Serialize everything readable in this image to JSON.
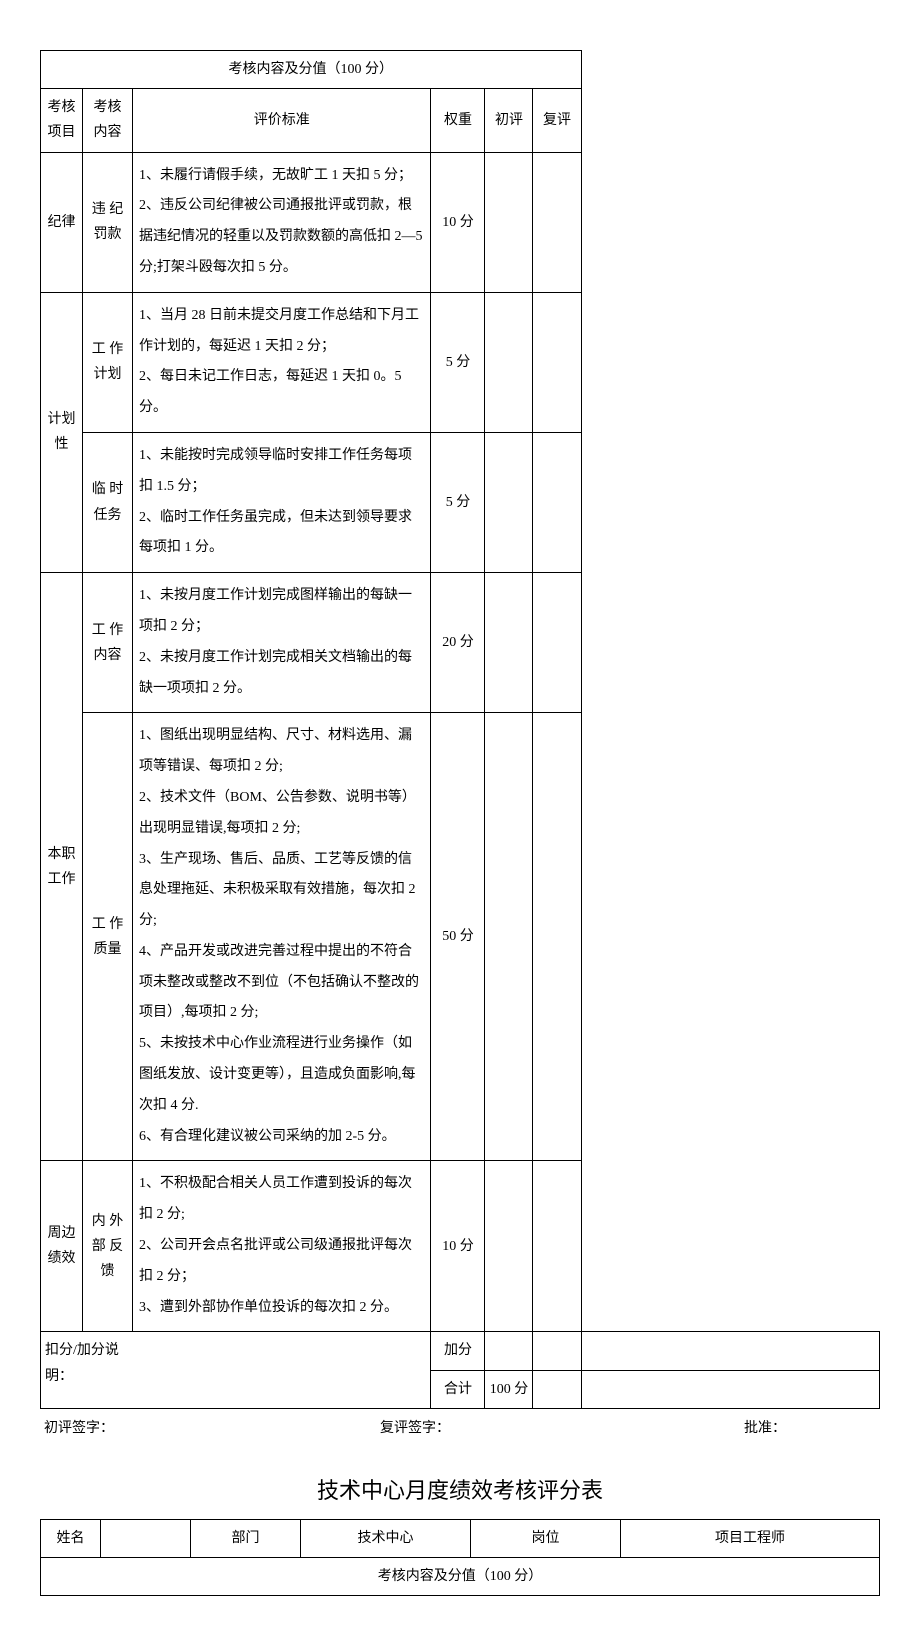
{
  "table1": {
    "header_full": "考核内容及分值（100 分）",
    "cols": {
      "item": "考核项目",
      "sub": "考核内容",
      "criteria": "评价标准",
      "weight": "权重",
      "score1": "初评",
      "score2": "复评"
    },
    "rows": [
      {
        "item": "纪律",
        "sub": "违 纪罚款",
        "criteria": "1、未履行请假手续，无故旷工 1 天扣 5 分；\n2、违反公司纪律被公司通报批评或罚款，根据违纪情况的轻重以及罚款数额的高低扣 2—5 分;打架斗殴每次扣 5 分。",
        "weight": "10 分"
      },
      {
        "item": "计划性",
        "subs": [
          {
            "sub": "工 作计划",
            "criteria": "1、当月 28 日前未提交月度工作总结和下月工作计划的，每延迟 1 天扣 2 分；\n2、每日未记工作日志，每延迟 1 天扣 0。5 分。",
            "weight": "5 分"
          },
          {
            "sub": "临 时任务",
            "criteria": "1、未能按时完成领导临时安排工作任务每项扣 1.5 分；\n2、临时工作任务虽完成，但未达到领导要求每项扣 1 分。",
            "weight": "5 分"
          }
        ]
      },
      {
        "item": "本职工作",
        "subs": [
          {
            "sub": "工 作内容",
            "criteria": "1、未按月度工作计划完成图样输出的每缺一项扣 2 分；\n2、未按月度工作计划完成相关文档输出的每缺一项项扣 2 分。",
            "weight": "20 分"
          },
          {
            "sub": "工 作质量",
            "criteria": "1、图纸出现明显结构、尺寸、材料选用、漏项等错误、每项扣 2 分;\n2、技术文件（BOM、公告参数、说明书等）出现明显错误,每项扣 2 分;\n3、生产现场、售后、品质、工艺等反馈的信息处理拖延、未积极采取有效措施，每次扣 2 分;\n4、产品开发或改进完善过程中提出的不符合项未整改或整改不到位（不包括确认不整改的项目）,每项扣 2 分;\n5、未按技术中心作业流程进行业务操作（如图纸发放、设计变更等），且造成负面影响,每次扣 4 分.\n6、有合理化建议被公司采纳的加 2-5 分。",
            "weight": "50 分"
          }
        ]
      },
      {
        "item": "周边绩效",
        "sub": "内 外部 反馈",
        "criteria": "1、不积极配合相关人员工作遭到投诉的每次扣 2 分;\n2、公司开会点名批评或公司级通报批评每次扣 2 分；\n3、遭到外部协作单位投诉的每次扣 2 分。",
        "weight": "10 分"
      }
    ],
    "note_label": "扣分/加分说明：",
    "add_label": "加分",
    "total_label": "合计",
    "total_value": "100 分",
    "sig1": "初评签字：",
    "sig2": "复评签字：",
    "sig3": "批准："
  },
  "title2": "技术中心月度绩效考核评分表",
  "table2": {
    "name_label": "姓名",
    "dept_label": "部门",
    "dept_value": "技术中心",
    "post_label": "岗位",
    "post_value": "项目工程师",
    "header_full": "考核内容及分值（100 分）"
  }
}
